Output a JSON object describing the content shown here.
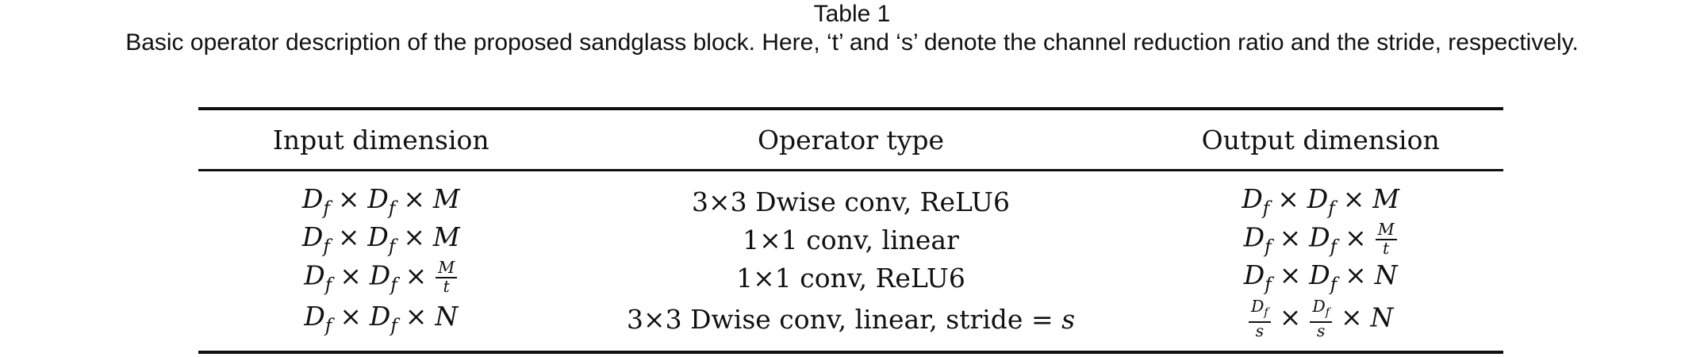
{
  "caption": {
    "label": "Table  1",
    "text": "Basic operator description of the proposed sandglass block. Here, ‘t’ and ‘s’ denote the channel reduction ratio and the stride, respectively."
  },
  "table": {
    "headers": [
      "Input dimension",
      "Operator type",
      "Output dimension"
    ],
    "rows": [
      {
        "input": {
          "D": "D",
          "sub": "f",
          "times": "×",
          "last": "M",
          "frac": false
        },
        "operator": "3×3 Dwise conv, ReLU6",
        "operator_var": "",
        "output": {
          "D": "D",
          "sub": "f",
          "times": "×",
          "last": "M",
          "frac": false,
          "frac_num": "",
          "frac_den": ""
        }
      },
      {
        "input": {
          "D": "D",
          "sub": "f",
          "times": "×",
          "last": "M",
          "frac": false
        },
        "operator": "1×1 conv, linear",
        "operator_var": "",
        "output": {
          "D": "D",
          "sub": "f",
          "times": "×",
          "last": "",
          "frac": true,
          "frac_num": "M",
          "frac_den": "t"
        }
      },
      {
        "input": {
          "D": "D",
          "sub": "f",
          "times": "×",
          "last": "",
          "frac": true,
          "frac_num": "M",
          "frac_den": "t"
        },
        "operator": "1×1 conv, ReLU6",
        "operator_var": "",
        "output": {
          "D": "D",
          "sub": "f",
          "times": "×",
          "last": "N",
          "frac": false,
          "frac_num": "",
          "frac_den": ""
        }
      },
      {
        "input": {
          "D": "D",
          "sub": "f",
          "times": "×",
          "last": "N",
          "frac": false
        },
        "operator": "3×3 Dwise conv, linear, stride = ",
        "operator_var": "s",
        "output": {
          "D": "D",
          "sub": "f",
          "den": "s",
          "times": "×",
          "last": "N"
        }
      }
    ]
  }
}
